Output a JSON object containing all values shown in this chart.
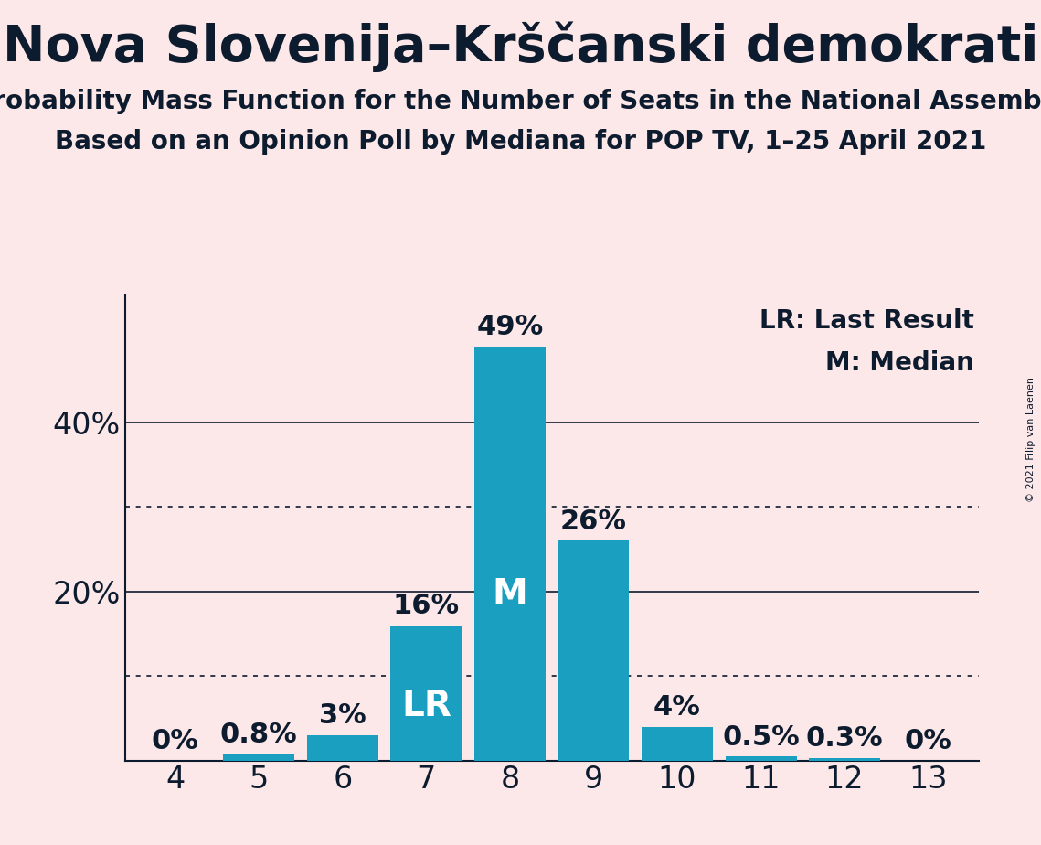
{
  "title": "Nova Slovenija–Krščanski demokrati",
  "subtitle1": "Probability Mass Function for the Number of Seats in the National Assembly",
  "subtitle2": "Based on an Opinion Poll by Mediana for POP TV, 1–25 April 2021",
  "copyright": "© 2021 Filip van Laenen",
  "seats": [
    4,
    5,
    6,
    7,
    8,
    9,
    10,
    11,
    12,
    13
  ],
  "probabilities": [
    0.0,
    0.8,
    3.0,
    16.0,
    49.0,
    26.0,
    4.0,
    0.5,
    0.3,
    0.0
  ],
  "bar_color": "#1a9fc0",
  "background_color": "#fce8e8",
  "text_color": "#0d1b2e",
  "lr_seat": 7,
  "median_seat": 8,
  "ylim": [
    0,
    55
  ],
  "solid_gridlines": [
    20,
    40
  ],
  "dotted_gridlines": [
    10,
    30
  ],
  "title_fontsize": 40,
  "subtitle_fontsize": 20,
  "tick_fontsize": 24,
  "bar_label_fontsize": 22,
  "inner_label_fontsize": 28,
  "legend_fontsize": 20,
  "copyright_fontsize": 8
}
